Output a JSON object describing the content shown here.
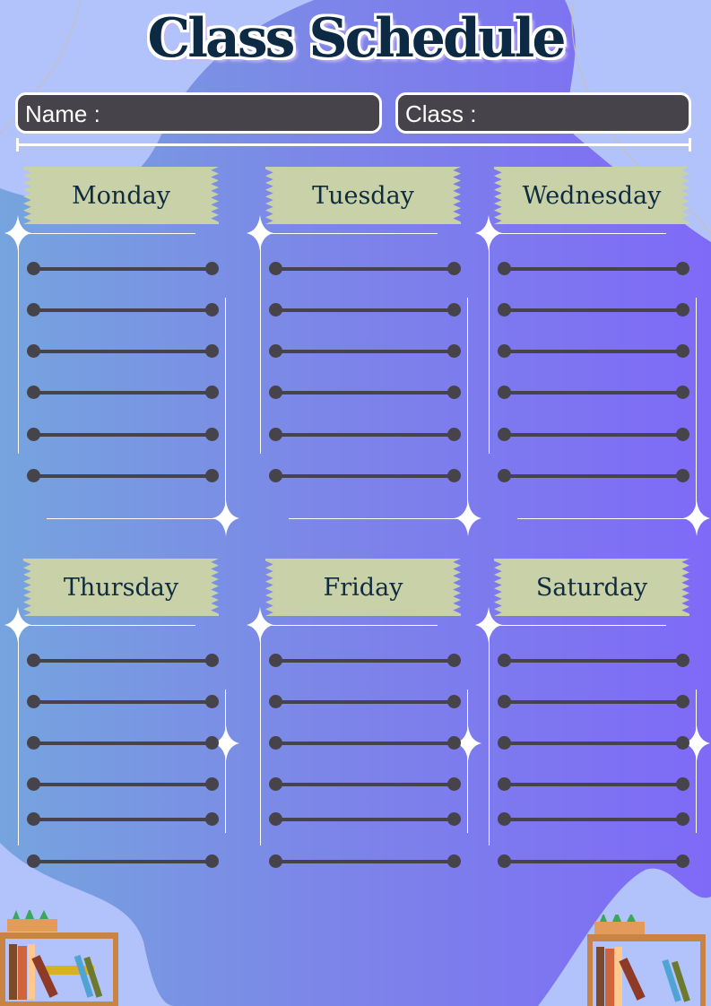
{
  "title": "Class Schedule",
  "fields": {
    "name_label": "Name :",
    "class_label": "Class :"
  },
  "days": [
    "Monday",
    "Tuesday",
    "Wednesday",
    "Thursday",
    "Friday",
    "Saturday"
  ],
  "rows_per_day": 6,
  "colors": {
    "gradient_left": "#76a4de",
    "gradient_right": "#7f6af7",
    "blob": "#b2c2fb",
    "field": "#46444a",
    "tag": "#c9d1a9",
    "title": "#0c2a44"
  }
}
